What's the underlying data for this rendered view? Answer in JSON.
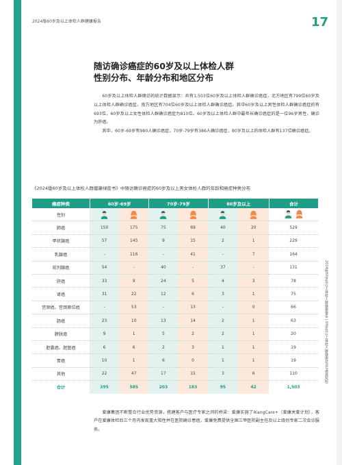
{
  "header": {
    "title": "2024版60岁及以上体检人群健康报告",
    "page_number": "17"
  },
  "section": {
    "title_line1": "随访确诊癌症的60岁及以上体检人群",
    "title_line2": "性别分布、年龄分布和地区分布"
  },
  "intro": {
    "p1": "60岁及以上体检人群随访的统计数据显示：共有1,503位60岁及以上体检人群确诊癌症，北方地区有799位60岁及以上体检人群确诊癌症，南方地区有704位60岁及以上体检人群确诊癌症。其中60岁及以上男性体检人群确诊癌症的有693位，60岁及以上女性体检人群确诊癌症为810位。60岁及以上体检人群中最年长确诊癌症的是一位96岁男性，确诊为肝癌。",
    "p2": "其中，60岁-69岁有980人确诊癌症，70岁-79岁有386人确诊癌症，80岁及以上的体检人群有137位确诊癌症。"
  },
  "table": {
    "caption": "《2024版60岁及以上体检人群健康绿皮书》中随访确诊癌症的60岁及以上男女体检人群的年龄和癌症种类分布",
    "headers": {
      "type": "癌症种类",
      "age1": "60岁-69岁",
      "age2": "70岁-79岁",
      "age3": "80岁及以上",
      "total": "合计"
    },
    "gender_label": "性别",
    "rows": [
      {
        "name": "肺癌",
        "v": [
          "150",
          "175",
          "75",
          "69",
          "40",
          "20",
          "529"
        ]
      },
      {
        "name": "甲状腺癌",
        "v": [
          "57",
          "145",
          "9",
          "15",
          "2",
          "1",
          "229"
        ]
      },
      {
        "name": "乳腺癌",
        "v": [
          "-",
          "116",
          "-",
          "41",
          "-",
          "7",
          "164"
        ]
      },
      {
        "name": "前列腺癌",
        "v": [
          "54",
          "-",
          "40",
          "-",
          "37",
          "-",
          "131"
        ]
      },
      {
        "name": "肝癌",
        "v": [
          "33",
          "9",
          "24",
          "5",
          "4",
          "3",
          "78"
        ]
      },
      {
        "name": "肾癌",
        "v": [
          "31",
          "22",
          "12",
          "6",
          "3",
          "1",
          "75"
        ]
      },
      {
        "name": "宫颈癌、宫颈原位癌",
        "v": [
          "-",
          "53",
          "-",
          "13",
          "-",
          "0",
          "66"
        ]
      },
      {
        "name": "肠癌",
        "v": [
          "23",
          "10",
          "13",
          "14",
          "2",
          "1",
          "63"
        ]
      },
      {
        "name": "膀胱癌",
        "v": [
          "9",
          "1",
          "5",
          "2",
          "2",
          "1",
          "20"
        ]
      },
      {
        "name": "胆囊癌、胆管癌",
        "v": [
          "6",
          "6",
          "2",
          "3",
          "1",
          "1",
          "19"
        ]
      },
      {
        "name": "胃癌",
        "v": [
          "10",
          "1",
          "6",
          "0",
          "1",
          "1",
          "19"
        ]
      },
      {
        "name": "其他",
        "v": [
          "22",
          "47",
          "17",
          "15",
          "3",
          "6",
          "110"
        ]
      }
    ],
    "total_row": {
      "name": "合计",
      "v": [
        "395",
        "585",
        "203",
        "183",
        "95",
        "42",
        "1,503"
      ]
    }
  },
  "closing": {
    "p1": "爱康集团不断整合行业优势资源，搭建客户与医疗专家之间的桥梁：爱康实施了iKangCare+（爱康关爱计划），客户在爱康体检后三个月内发现重大阳性并在医院确诊患癌，爱康免费提供全国三甲医院副主任及以上级别专家二次会诊服务。"
  },
  "side_text": "2024版60岁及以上体检人群健康报告 | 60岁及以上体检人群健康状况与慢病风险",
  "colors": {
    "accent": "#1f9d86",
    "male_bg": "#e3f2ef",
    "female_bg": "#fde8dc",
    "female_icon": "#f08a4b",
    "male_icon": "#1f9d86"
  },
  "icons": {
    "male": "male-person-icon",
    "female": "female-person-icon"
  }
}
